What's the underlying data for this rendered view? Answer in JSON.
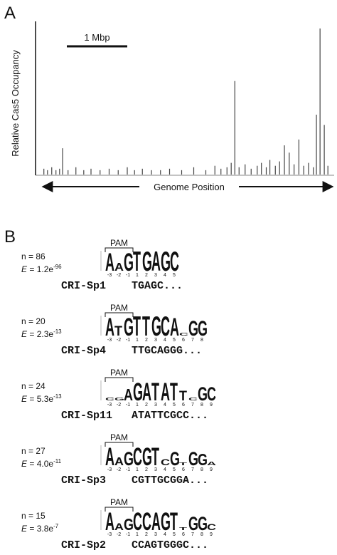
{
  "chart_data": {
    "type": "spike",
    "panel_label": "A",
    "y_label": "Relative Cas5 Occupancy",
    "x_label": "Genome Position",
    "scale_bar": {
      "label": "1 Mbp",
      "length": 1
    },
    "xlim": [
      0,
      4.8
    ],
    "ylim": [
      0,
      100
    ],
    "color": "#444",
    "x": [
      0.02,
      0.08,
      0.15,
      0.22,
      0.28,
      0.33,
      0.42,
      0.55,
      0.68,
      0.8,
      0.95,
      1.1,
      1.25,
      1.4,
      1.52,
      1.65,
      1.8,
      1.95,
      2.1,
      2.3,
      2.5,
      2.7,
      2.85,
      2.95,
      3.05,
      3.12,
      3.18,
      3.25,
      3.35,
      3.45,
      3.55,
      3.62,
      3.7,
      3.76,
      3.85,
      3.92,
      4.0,
      4.08,
      4.16,
      4.24,
      4.32,
      4.4,
      4.48,
      4.53,
      4.59,
      4.66,
      4.72
    ],
    "values": [
      4,
      3,
      5,
      3,
      4,
      18,
      3,
      5,
      3,
      4,
      3,
      4,
      3,
      5,
      3,
      4,
      3,
      3,
      4,
      3,
      5,
      3,
      6,
      4,
      5,
      8,
      64,
      5,
      7,
      4,
      6,
      8,
      5,
      10,
      6,
      9,
      20,
      15,
      7,
      24,
      6,
      8,
      5,
      41,
      100,
      34,
      6
    ]
  },
  "motifs_panel": {
    "panel_label": "B",
    "pam_label": "PAM",
    "n_prefix": "n = ",
    "e_symbol": "E",
    "e_equals": " = ",
    "motifs": [
      {
        "n": 86,
        "e_mantissa": "1.2e",
        "e_exponent": "-96",
        "name": "CRI-Sp1",
        "sequence": "TGAGC...",
        "letters": [
          "A",
          "A",
          "G",
          "T",
          "G",
          "A",
          "G",
          "C"
        ],
        "heights": [
          1.8,
          0.8,
          1.8,
          2,
          2,
          2,
          2,
          2
        ],
        "positions": [
          -3,
          -2,
          -1,
          1,
          2,
          3,
          4,
          5
        ]
      },
      {
        "n": 20,
        "e_mantissa": "2.3e",
        "e_exponent": "-13",
        "name": "CRI-Sp4",
        "sequence": "TTGCAGGG...",
        "letters": [
          "A",
          "T",
          "G",
          "T",
          "T",
          "G",
          "C",
          "A",
          "C",
          "G",
          "G"
        ],
        "heights": [
          1.8,
          1.0,
          1.8,
          2,
          2,
          2,
          2,
          1.8,
          0.3,
          1.5,
          1.5
        ],
        "positions": [
          -3,
          -2,
          -1,
          1,
          2,
          3,
          4,
          5,
          6,
          7,
          8
        ]
      },
      {
        "n": 24,
        "e_mantissa": "5.3e",
        "e_exponent": "-13",
        "name": "CRI-Sp11",
        "sequence": "ATATTCGCC...",
        "letters": [
          "C",
          "G",
          "A",
          "G",
          "A",
          "T",
          "A",
          "T",
          "T",
          "C",
          "G",
          "C"
        ],
        "heights": [
          0.3,
          0.3,
          1.2,
          1.8,
          1.8,
          1.8,
          1.8,
          1.8,
          1.0,
          0.3,
          1.4,
          1.4
        ],
        "positions": [
          -3,
          -2,
          -1,
          1,
          2,
          3,
          4,
          5,
          6,
          7,
          8,
          9
        ]
      },
      {
        "n": 27,
        "e_mantissa": "4.0e",
        "e_exponent": "-11",
        "name": "CRI-Sp3",
        "sequence": "CGTTGCGGA...",
        "letters": [
          "A",
          "A",
          "G",
          "C",
          "G",
          "T",
          "C",
          "G",
          "T",
          "G",
          "G",
          "A"
        ],
        "heights": [
          1.8,
          0.8,
          1.4,
          1.8,
          1.8,
          1.8,
          0.6,
          1.4,
          0.3,
          1.4,
          1.2,
          0.4
        ],
        "positions": [
          -3,
          -2,
          -1,
          1,
          2,
          3,
          4,
          5,
          6,
          7,
          8,
          9
        ]
      },
      {
        "n": 15,
        "e_mantissa": "3.8e",
        "e_exponent": "-7",
        "name": "CRI-Sp2",
        "sequence": "CCAGTGGGC...",
        "letters": [
          "A",
          "A",
          "G",
          "C",
          "C",
          "A",
          "G",
          "T",
          "T",
          "G",
          "G",
          "C"
        ],
        "heights": [
          1.8,
          0.7,
          1.2,
          1.8,
          1.8,
          1.8,
          1.8,
          1.8,
          0.3,
          1.4,
          1.4,
          0.6
        ],
        "positions": [
          -3,
          -2,
          -1,
          1,
          2,
          3,
          4,
          5,
          6,
          7,
          8,
          9
        ]
      }
    ]
  }
}
